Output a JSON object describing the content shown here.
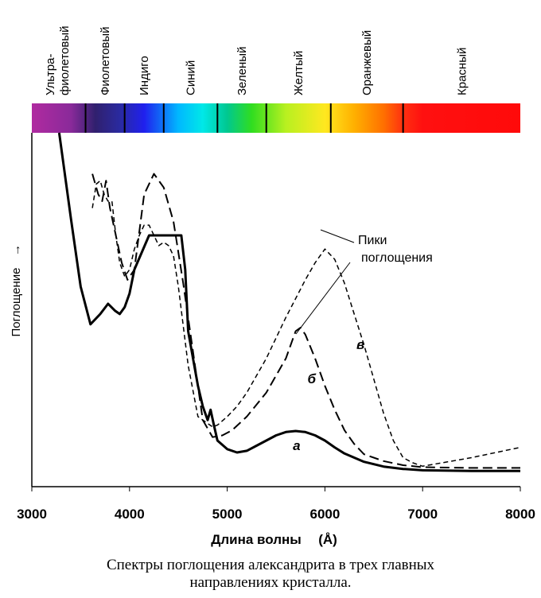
{
  "chart_data": {
    "type": "line",
    "xlabel": "Длина волны",
    "xunit": "(Å)",
    "ylabel": "Поглощение",
    "ylabel_arrow": "→",
    "xlim": [
      3000,
      8000
    ],
    "xticks": [
      3000,
      4000,
      5000,
      6000,
      7000,
      8000
    ],
    "grid": false,
    "spectrum_bands": [
      {
        "label": "Ультра-",
        "label2": "фиолетовый",
        "from": 3000,
        "to": 3550
      },
      {
        "label": "Фиолетовый",
        "from": 3550,
        "to": 3950
      },
      {
        "label": "Индиго",
        "from": 3950,
        "to": 4350
      },
      {
        "label": "Синий",
        "from": 4350,
        "to": 4900
      },
      {
        "label": "Зеленый",
        "from": 4900,
        "to": 5400
      },
      {
        "label": "Желтый",
        "from": 5400,
        "to": 6060
      },
      {
        "label": "Оранжевый",
        "from": 6060,
        "to": 6800
      },
      {
        "label": "Красный",
        "from": 6800,
        "to": 8000
      }
    ],
    "series": [
      {
        "name": "а",
        "style": "solid",
        "x": [
          3280,
          3400,
          3500,
          3600,
          3700,
          3780,
          3850,
          3900,
          3950,
          4000,
          4050,
          4200,
          4400,
          4530,
          4570,
          4600,
          4650,
          4700,
          4750,
          4800,
          4830,
          4860,
          4900,
          5000,
          5100,
          5200,
          5300,
          5400,
          5500,
          5600,
          5700,
          5800,
          5900,
          6000,
          6100,
          6200,
          6400,
          6600,
          6800,
          7000,
          7500,
          8000
        ],
        "y": [
          1.0,
          0.75,
          0.55,
          0.44,
          0.47,
          0.5,
          0.48,
          0.47,
          0.49,
          0.53,
          0.6,
          0.7,
          0.7,
          0.7,
          0.6,
          0.42,
          0.34,
          0.26,
          0.2,
          0.16,
          0.19,
          0.15,
          0.1,
          0.075,
          0.065,
          0.07,
          0.085,
          0.1,
          0.115,
          0.125,
          0.128,
          0.125,
          0.115,
          0.1,
          0.08,
          0.062,
          0.038,
          0.024,
          0.017,
          0.013,
          0.011,
          0.011
        ]
      },
      {
        "name": "б",
        "style": "dashed",
        "x": [
          3620,
          3680,
          3720,
          3760,
          3800,
          3860,
          3920,
          3980,
          4050,
          4150,
          4250,
          4350,
          4450,
          4550,
          4650,
          4750,
          4850,
          4950,
          5050,
          5200,
          5400,
          5600,
          5700,
          5750,
          5800,
          5900,
          6000,
          6100,
          6200,
          6300,
          6400,
          6600,
          6800,
          7000,
          7500,
          8000
        ],
        "y": [
          0.88,
          0.82,
          0.8,
          0.86,
          0.78,
          0.7,
          0.62,
          0.57,
          0.6,
          0.82,
          0.88,
          0.84,
          0.74,
          0.56,
          0.36,
          0.16,
          0.11,
          0.115,
          0.13,
          0.17,
          0.24,
          0.34,
          0.42,
          0.43,
          0.41,
          0.34,
          0.26,
          0.19,
          0.13,
          0.09,
          0.06,
          0.04,
          0.028,
          0.022,
          0.02,
          0.02
        ]
      },
      {
        "name": "в",
        "style": "dashed-short",
        "x": [
          3620,
          3660,
          3700,
          3740,
          3780,
          3820,
          3860,
          3900,
          3950,
          4000,
          4050,
          4100,
          4150,
          4200,
          4250,
          4300,
          4350,
          4400,
          4450,
          4500,
          4600,
          4700,
          4800,
          4850,
          4900,
          5000,
          5100,
          5200,
          5400,
          5600,
          5800,
          5900,
          6000,
          6100,
          6200,
          6300,
          6400,
          6500,
          6600,
          6700,
          6800,
          6900,
          7000,
          7500,
          8000
        ],
        "y": [
          0.78,
          0.85,
          0.86,
          0.82,
          0.8,
          0.8,
          0.7,
          0.62,
          0.58,
          0.6,
          0.66,
          0.7,
          0.73,
          0.73,
          0.7,
          0.67,
          0.68,
          0.67,
          0.64,
          0.55,
          0.32,
          0.17,
          0.15,
          0.14,
          0.145,
          0.17,
          0.2,
          0.24,
          0.34,
          0.46,
          0.57,
          0.62,
          0.66,
          0.63,
          0.56,
          0.47,
          0.38,
          0.28,
          0.18,
          0.1,
          0.05,
          0.035,
          0.025,
          0.05,
          0.08
        ]
      }
    ],
    "annotations": {
      "peaks_line1": "Пики",
      "peaks_line2": "поглощения"
    }
  },
  "caption": {
    "line1": "Спектры поглощения александрита в трех главных",
    "line2": "направлениях кристалла."
  }
}
